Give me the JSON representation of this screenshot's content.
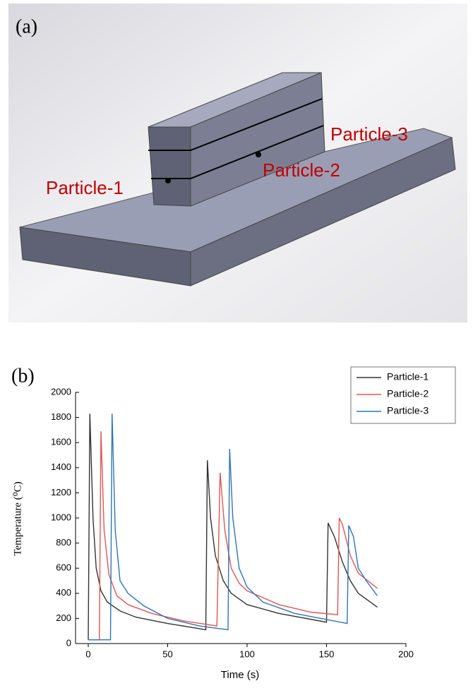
{
  "panel_a": {
    "label": "(a)",
    "particles": [
      "Particle-1",
      "Particle-2",
      "Particle-3"
    ]
  },
  "chart_data": {
    "type": "line",
    "panel_label": "(b)",
    "x_label": "Time (s)",
    "y_label": "Temperature (⁰C)",
    "xlim": [
      -8,
      200
    ],
    "xticks": [
      0,
      50,
      100,
      150,
      200
    ],
    "ylim": [
      0,
      2000
    ],
    "yticks": [
      0,
      200,
      400,
      600,
      800,
      1000,
      1200,
      1400,
      1600,
      1800,
      2000
    ],
    "series": [
      {
        "name": "Particle-1",
        "color": "#333333",
        "x": [
          0,
          1,
          3,
          5,
          8,
          12,
          20,
          30,
          50,
          74,
          75,
          77,
          80,
          85,
          90,
          100,
          120,
          150,
          151,
          155,
          160,
          165,
          170,
          182
        ],
        "values": [
          30,
          1830,
          1000,
          600,
          420,
          330,
          260,
          210,
          160,
          110,
          1460,
          1000,
          700,
          500,
          400,
          310,
          240,
          170,
          960,
          850,
          650,
          500,
          400,
          290
        ]
      },
      {
        "name": "Particle-2",
        "color": "#e05555",
        "x": [
          0,
          7,
          8,
          10,
          13,
          18,
          25,
          40,
          60,
          81,
          83,
          86,
          90,
          95,
          100,
          120,
          140,
          157,
          158,
          160,
          165,
          170,
          182
        ],
        "values": [
          30,
          30,
          1690,
          900,
          550,
          380,
          310,
          240,
          180,
          140,
          1360,
          900,
          600,
          480,
          420,
          310,
          250,
          230,
          1000,
          950,
          700,
          560,
          440
        ]
      },
      {
        "name": "Particle-3",
        "color": "#2e75b6",
        "x": [
          0,
          14,
          15,
          17,
          20,
          25,
          35,
          50,
          70,
          88,
          89,
          91,
          95,
          100,
          110,
          130,
          163,
          164,
          167,
          170,
          175,
          182
        ],
        "values": [
          30,
          30,
          1830,
          900,
          500,
          400,
          300,
          200,
          140,
          110,
          1550,
          1000,
          600,
          450,
          330,
          240,
          160,
          940,
          850,
          600,
          500,
          380
        ]
      }
    ]
  }
}
